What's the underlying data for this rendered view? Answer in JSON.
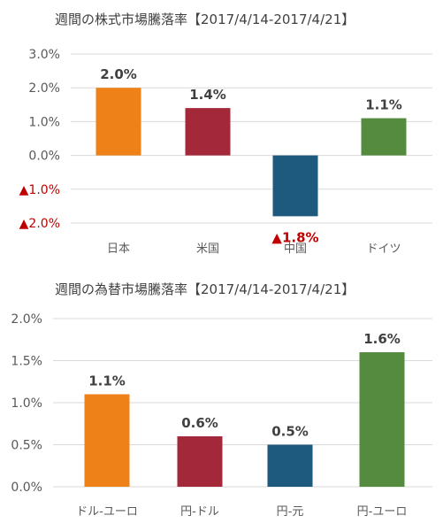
{
  "chart_data": [
    {
      "type": "bar",
      "title": "週間の株式市場騰落率【2017/4/14-2017/4/21】",
      "categories": [
        "日本",
        "米国",
        "中国",
        "ドイツ"
      ],
      "values": [
        2.0,
        1.4,
        -1.8,
        1.1
      ],
      "value_labels": [
        "2.0%",
        "1.4%",
        "▲1.8%",
        "1.1%"
      ],
      "colors": [
        "#ee8218",
        "#a3283a",
        "#1d5a7e",
        "#548b3f"
      ],
      "ylim": [
        -2.0,
        3.0
      ],
      "yticks": [
        3.0,
        2.0,
        1.0,
        0.0,
        -1.0,
        -2.0
      ],
      "ytick_labels": [
        "3.0%",
        "2.0%",
        "1.0%",
        "0.0%",
        "▲1.0%",
        "▲2.0%"
      ],
      "negative_color": "#c00000",
      "grid": true,
      "legend": "none"
    },
    {
      "type": "bar",
      "title": "週間の為替市場騰落率【2017/4/14-2017/4/21】",
      "categories": [
        "ドル-ユーロ",
        "円-ドル",
        "円-元",
        "円-ユーロ"
      ],
      "values": [
        1.1,
        0.6,
        0.5,
        1.6
      ],
      "value_labels": [
        "1.1%",
        "0.6%",
        "0.5%",
        "1.6%"
      ],
      "colors": [
        "#ee8218",
        "#a3283a",
        "#1d5a7e",
        "#548b3f"
      ],
      "ylim": [
        0.0,
        2.0
      ],
      "yticks": [
        2.0,
        1.5,
        1.0,
        0.5,
        0.0
      ],
      "ytick_labels": [
        "2.0%",
        "1.5%",
        "1.0%",
        "0.5%",
        "0.0%"
      ],
      "grid": true,
      "legend": "none"
    }
  ]
}
